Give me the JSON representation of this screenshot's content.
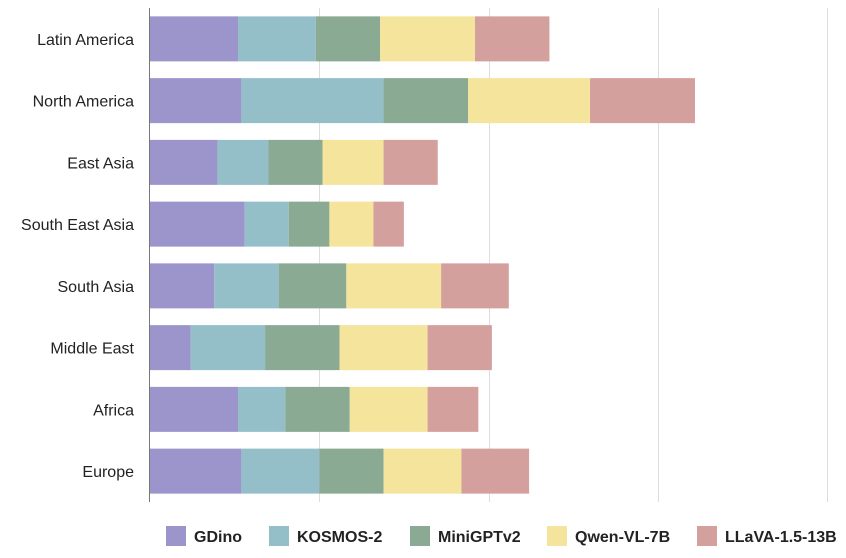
{
  "chart_data": {
    "type": "bar",
    "orientation": "horizontal",
    "stacked": true,
    "categories": [
      "Latin America",
      "North America",
      "East Asia",
      "South East Asia",
      "South Asia",
      "Middle East",
      "Africa",
      "Europe"
    ],
    "series": [
      {
        "name": "GDino",
        "color": "#9b95cb",
        "values": [
          0.26,
          0.27,
          0.2,
          0.28,
          0.19,
          0.12,
          0.26,
          0.27
        ]
      },
      {
        "name": "KOSMOS-2",
        "color": "#94bfc9",
        "values": [
          0.23,
          0.42,
          0.15,
          0.13,
          0.19,
          0.22,
          0.14,
          0.23
        ]
      },
      {
        "name": "MiniGPTv2",
        "color": "#8aaa94",
        "values": [
          0.19,
          0.25,
          0.16,
          0.12,
          0.2,
          0.22,
          0.19,
          0.19
        ]
      },
      {
        "name": "Qwen-VL-7B",
        "color": "#f5e49c",
        "values": [
          0.28,
          0.36,
          0.18,
          0.13,
          0.28,
          0.26,
          0.23,
          0.23
        ]
      },
      {
        "name": "LLaVA-1.5-13B",
        "color": "#d4a09d",
        "values": [
          0.22,
          0.31,
          0.16,
          0.09,
          0.2,
          0.19,
          0.15,
          0.2
        ]
      }
    ],
    "xlim": [
      0,
      2.0
    ],
    "xticks": [
      0,
      0.5,
      1.0,
      1.5,
      2.0
    ],
    "grid": "vertical",
    "legend_position": "bottom"
  }
}
